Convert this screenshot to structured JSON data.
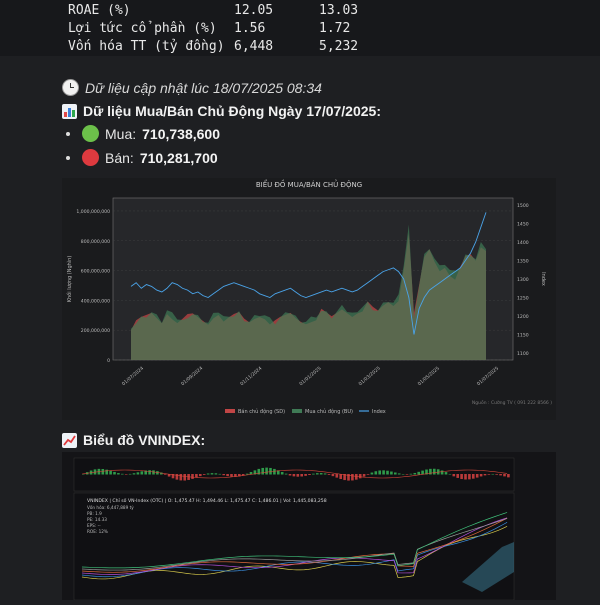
{
  "stats": [
    {
      "label": "ROAE (%)",
      "v1": "12.05",
      "v2": "13.03"
    },
    {
      "label": "Lợi tức cổ phần (%)",
      "v1": "1.56",
      "v2": "1.72"
    },
    {
      "label": "Vốn hóa TT (tỷ đồng)",
      "v1": "6,448",
      "v2": "5,232"
    }
  ],
  "updated_text": "Dữ liệu cập nhật lúc 18/07/2025 08:34",
  "active_heading": "Dữ liệu Mua/Bán Chủ Động Ngày 17/07/2025:",
  "buy": {
    "label": "Mua:",
    "value": "710,738,600",
    "color": "#6cc04a"
  },
  "sell": {
    "label": "Bán:",
    "value": "710,281,700",
    "color": "#dd3a3f"
  },
  "chart_data": [
    {
      "type": "area",
      "title": "BIỂU ĐỒ MUA/BÁN CHỦ ĐỘNG",
      "ylabel": "Khối lượng (Nghìn)",
      "y2label": "Index",
      "ylim": [
        0,
        1000000000
      ],
      "y2lim": [
        1100,
        1500
      ],
      "yticks": [
        "0",
        "200,000,000",
        "400,000,000",
        "600,000,000",
        "800,000,000",
        "1,000,000,000"
      ],
      "y2ticks": [
        "1100",
        "1150",
        "1200",
        "1250",
        "1300",
        "1350",
        "1400",
        "1450",
        "1500"
      ],
      "xticks": [
        "01/07/2024",
        "01/09/2024",
        "01/11/2024",
        "01/01/2025",
        "01/03/2025",
        "01/05/2025",
        "01/07/2025"
      ],
      "legend": [
        "Bán chủ động (SD)",
        "Mua chủ động (BU)",
        "Index"
      ],
      "source": "Nguồn : Cường TV ( 091 222 8566 )",
      "colors": {
        "sell": "#c04545",
        "buy": "#3f7a55",
        "index": "#4aa3e8"
      },
      "buy_profile": [
        230,
        250,
        280,
        300,
        320,
        290,
        260,
        330,
        300,
        280,
        260,
        300,
        310,
        290,
        270,
        250,
        300,
        330,
        290,
        270,
        300,
        320,
        280,
        260,
        290,
        310,
        300,
        270,
        250,
        280,
        300,
        320,
        290,
        270,
        260,
        280,
        300,
        330,
        310,
        290,
        320,
        350,
        330,
        310,
        340,
        360,
        380,
        350,
        330,
        370,
        400,
        380,
        420,
        640,
        900,
        300,
        500,
        700,
        760,
        680,
        620,
        650,
        600,
        580,
        620,
        700,
        720,
        680,
        780,
        760
      ],
      "index_profile": [
        1280,
        1290,
        1275,
        1285,
        1280,
        1270,
        1265,
        1275,
        1290,
        1285,
        1275,
        1270,
        1260,
        1265,
        1255,
        1250,
        1260,
        1270,
        1280,
        1285,
        1290,
        1285,
        1280,
        1275,
        1270,
        1260,
        1255,
        1250,
        1260,
        1265,
        1270,
        1275,
        1265,
        1255,
        1250,
        1255,
        1260,
        1265,
        1270,
        1265,
        1270,
        1275,
        1270,
        1265,
        1270,
        1280,
        1290,
        1300,
        1310,
        1320,
        1325,
        1330,
        1320,
        1300,
        1250,
        1150,
        1220,
        1250,
        1270,
        1280,
        1290,
        1300,
        1310,
        1320,
        1330,
        1350,
        1370,
        1400,
        1440,
        1480
      ]
    },
    {
      "type": "line",
      "title": "VNINDEX | Chỉ số VN-Index (OTC)",
      "header_line": "VNINDEX | Chỉ số VN-Index (OTC) | O: 1,475.47 H: 1,494.46 L: 1,475.47 C: 1,486.01 | Vol: 1,445,083,258",
      "info_lines": [
        "Vốn hóa: 6,447,889 tỷ",
        "PB: 1.9",
        "PE: 14.33",
        "EPS: --",
        "ROE: 12%"
      ]
    }
  ],
  "chart2_heading": "Biểu đồ VNINDEX:"
}
